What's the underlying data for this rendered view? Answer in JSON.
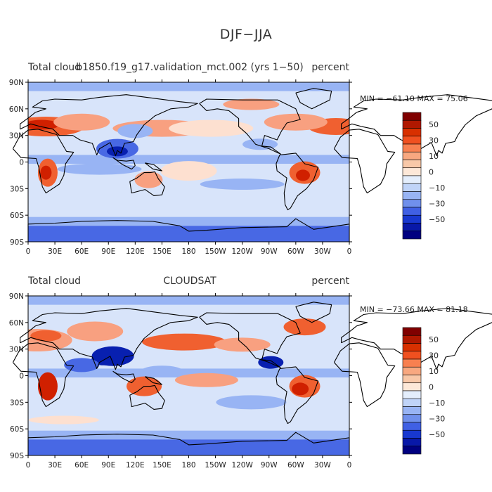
{
  "title": "DJF−JJA",
  "panels": [
    {
      "left_label": "Total cloud",
      "center_label": "b1850.f19_g17.validation_mct.002 (yrs 1−50)",
      "right_label": "percent",
      "min_max": "MIN = −61.10  MAX =  75.06"
    },
    {
      "left_label": "Total cloud",
      "center_label": "CLOUDSAT",
      "right_label": "percent",
      "min_max": "MIN = −73.66  MAX =  81.18"
    }
  ],
  "axes": {
    "lat_ticks": [
      "90N",
      "60N",
      "30N",
      "0",
      "30S",
      "60S",
      "90S"
    ],
    "lon_ticks": [
      "0",
      "30E",
      "60E",
      "90E",
      "120E",
      "150E",
      "180",
      "150W",
      "120W",
      "90W",
      "60W",
      "30W",
      "0"
    ]
  },
  "colorbar": {
    "labels": [
      "50",
      "30",
      "10",
      "0",
      "−10",
      "−30",
      "−50"
    ],
    "colors": [
      "#800000",
      "#b01800",
      "#d83000",
      "#f05020",
      "#f88050",
      "#f8a880",
      "#f8c8a8",
      "#fde8d8",
      "#e4eefc",
      "#c0d4f8",
      "#98b4f4",
      "#7090ec",
      "#4060e4",
      "#1838d0",
      "#0818a8",
      "#000080"
    ]
  },
  "palette": {
    "pos3": "#d02000",
    "pos2": "#f06030",
    "pos1": "#f8a080",
    "pos0": "#fde0d0",
    "neg0": "#d8e4fa",
    "neg1": "#98b4f4",
    "neg2": "#4868e4",
    "neg3": "#0820b0",
    "land": "#000000"
  }
}
